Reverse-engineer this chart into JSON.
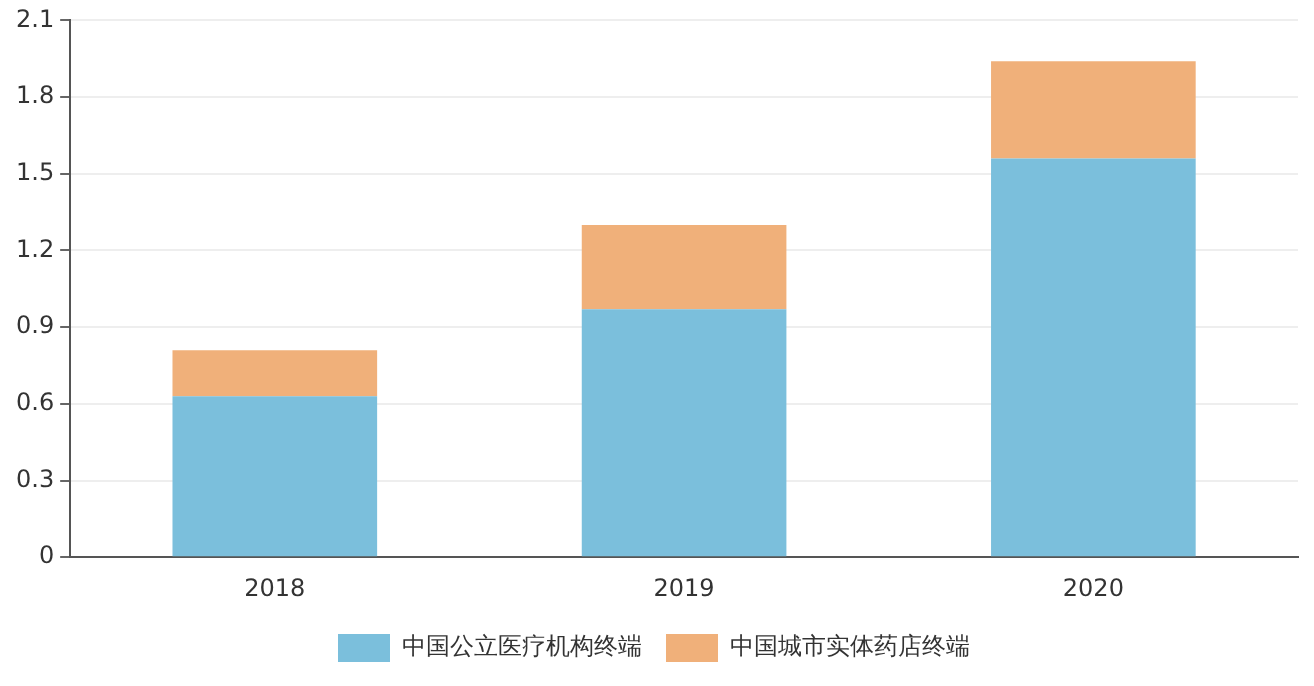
{
  "chart_data": {
    "type": "bar",
    "stacked": true,
    "categories": [
      "2018",
      "2019",
      "2020"
    ],
    "series": [
      {
        "name": "中国公立医疗机构终端",
        "color": "#7bbfdc",
        "values": [
          0.63,
          0.97,
          1.56
        ]
      },
      {
        "name": "中国城市实体药店终端",
        "color": "#f0b07a",
        "values": [
          0.18,
          0.33,
          0.38
        ]
      }
    ],
    "ylim": [
      0,
      2.1
    ],
    "yticks": [
      0,
      0.3,
      0.6,
      0.9,
      1.2,
      1.5,
      1.8,
      2.1
    ],
    "grid": "y",
    "legend": "bottom"
  }
}
